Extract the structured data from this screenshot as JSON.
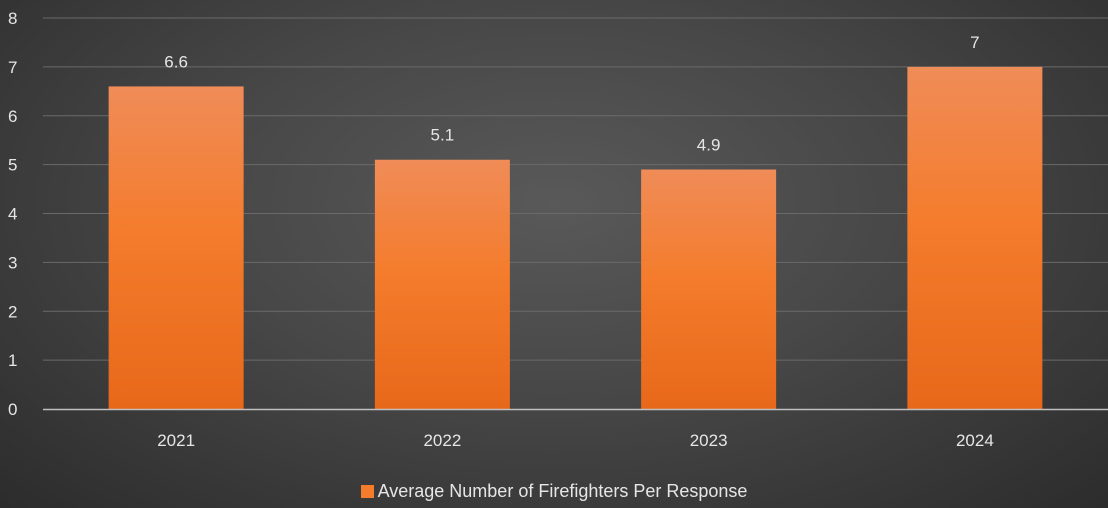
{
  "chart_data": {
    "type": "bar",
    "categories": [
      "2021",
      "2022",
      "2023",
      "2024"
    ],
    "series": [
      {
        "name": "Average Number of Firefighters Per Response",
        "values": [
          6.6,
          5.1,
          4.9,
          7
        ],
        "data_labels": [
          "6.6",
          "5.1",
          "4.9",
          "7"
        ]
      }
    ],
    "title": "",
    "xlabel": "",
    "ylabel": "",
    "ylim": [
      0,
      8
    ],
    "yticks": [
      "0",
      "1",
      "2",
      "3",
      "4",
      "5",
      "6",
      "7",
      "8"
    ],
    "grid": true,
    "legend_position": "bottom",
    "colors": {
      "bar_top": "#f08c58",
      "bar_bottom": "#e8681a",
      "bar_mid": "#f47c2c",
      "gridline": "#6a6a6a",
      "axis": "#bfbfbf",
      "text": "#e6e6e6"
    }
  }
}
